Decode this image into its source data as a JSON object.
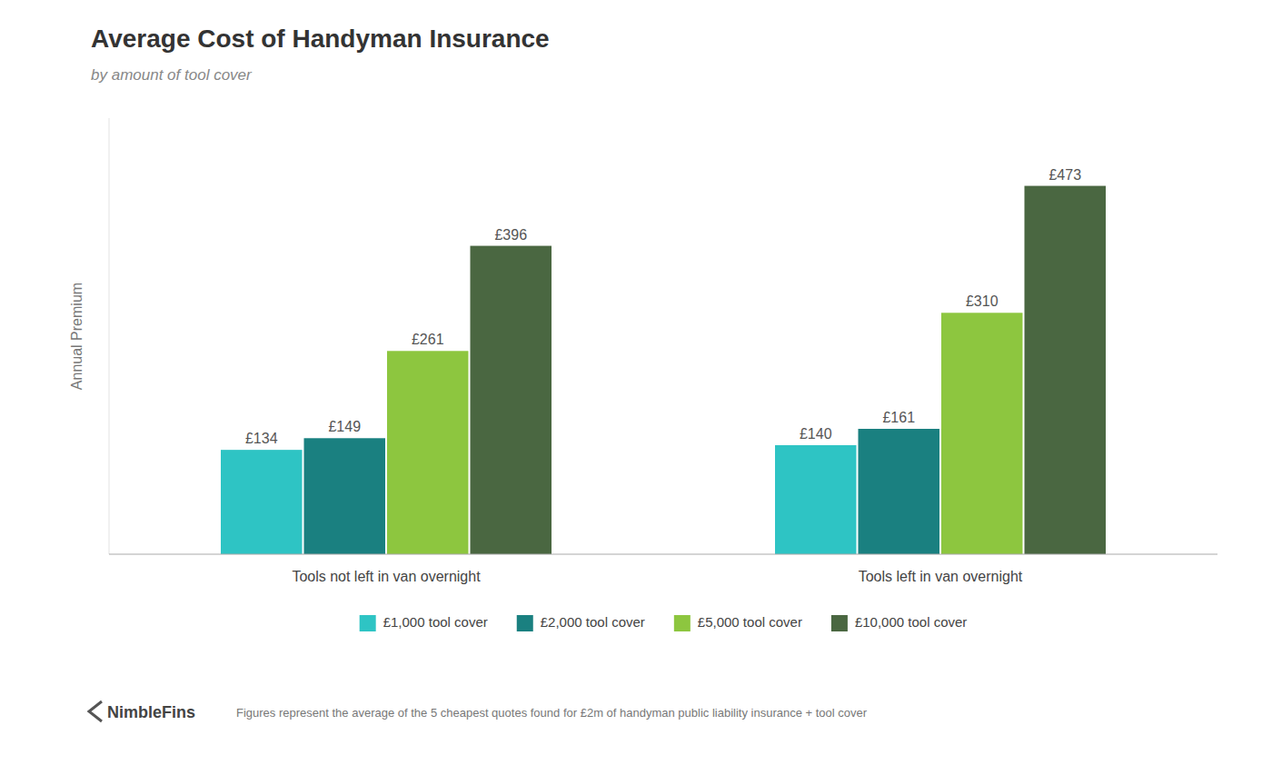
{
  "chart_data": {
    "type": "bar",
    "title": "Average Cost of Handyman Insurance",
    "subtitle": "by amount of tool cover",
    "ylabel": "Annual Premium",
    "categories": [
      "Tools not left in van overnight",
      "Tools left in van overnight"
    ],
    "series": [
      {
        "name": "£1,000 tool cover",
        "color": "#2EC4C4",
        "values": [
          134,
          140
        ],
        "value_labels": [
          "£134",
          "£140"
        ]
      },
      {
        "name": "£2,000 tool cover",
        "color": "#1A8080",
        "values": [
          149,
          161
        ],
        "value_labels": [
          "£149",
          "£161"
        ]
      },
      {
        "name": "£5,000 tool cover",
        "color": "#8DC63F",
        "values": [
          261,
          310
        ],
        "value_labels": [
          "£261",
          "£310"
        ]
      },
      {
        "name": "£10,000 tool cover",
        "color": "#4A6741",
        "values": [
          396,
          473
        ],
        "value_labels": [
          "£396",
          "£473"
        ]
      }
    ],
    "ylim": [
      0,
      560
    ],
    "grid": false,
    "legend": "bottom",
    "data_labels": true,
    "tick_labels": "x",
    "annotations": [
      "Figures represent the average of the 5 cheapest quotes found for £2m of handyman public liability insurance + tool cover",
      "NimbleFins"
    ]
  }
}
